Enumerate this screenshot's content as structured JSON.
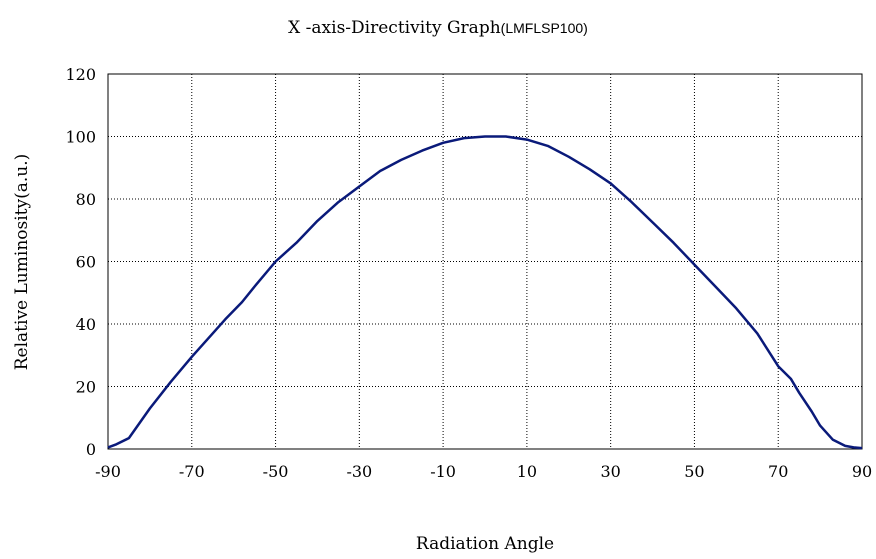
{
  "chart_data": {
    "type": "line",
    "title": "X -axis-Directivity Graph",
    "subtitle": "(LMFLSP100)",
    "xlabel": "Radiation Angle",
    "ylabel": "Relative Luminosity(a.u.)",
    "xlim": [
      -90,
      90
    ],
    "ylim": [
      0,
      120
    ],
    "x_ticks": [
      -90,
      -70,
      -50,
      -30,
      -10,
      10,
      30,
      50,
      70,
      90
    ],
    "y_ticks": [
      0,
      20,
      40,
      60,
      80,
      100,
      120
    ],
    "grid": true,
    "line_color": "#0a1a7a",
    "series": [
      {
        "x": [
          -90,
          -88,
          -85,
          -80,
          -75,
          -70,
          -65,
          -62,
          -58,
          -55,
          -50,
          -45,
          -40,
          -35,
          -30,
          -25,
          -20,
          -15,
          -10,
          -5,
          0,
          5,
          10,
          15,
          20,
          25,
          30,
          35,
          40,
          45,
          50,
          55,
          60,
          65,
          70,
          73,
          75,
          78,
          80,
          83,
          86,
          88,
          90
        ],
        "y": [
          0.5,
          1.5,
          3.5,
          13,
          21.5,
          29.5,
          37,
          41.5,
          47,
          52,
          60,
          66,
          73,
          79,
          84,
          89,
          92.5,
          95.5,
          98,
          99.5,
          100,
          100,
          99,
          97,
          93.5,
          89.5,
          85,
          79,
          72.5,
          66,
          59,
          52,
          45,
          37,
          26.5,
          22.5,
          18,
          12,
          7.5,
          3,
          1,
          0.5,
          0.3
        ]
      }
    ]
  }
}
